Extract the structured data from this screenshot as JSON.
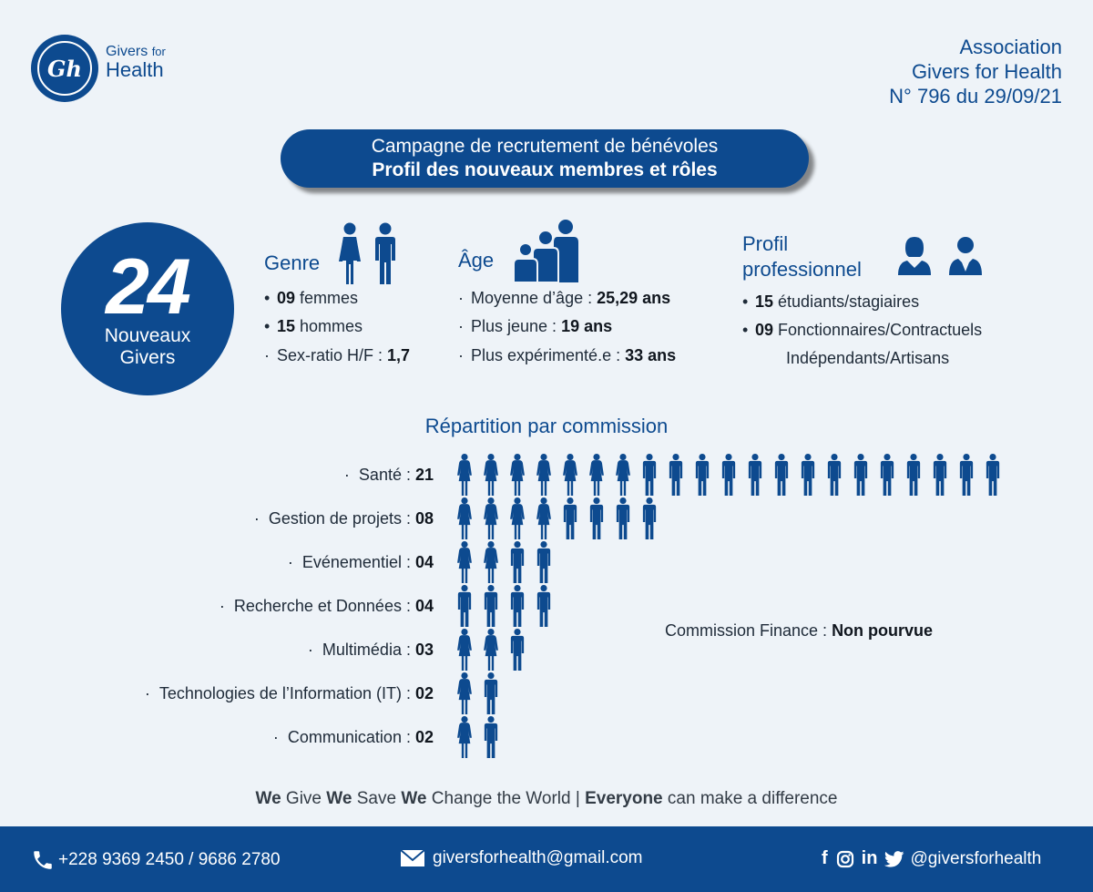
{
  "logo": {
    "line1": "Givers",
    "line1_small": "for",
    "line2": "Health",
    "monogram": "Gh"
  },
  "association": {
    "line1": "Association",
    "line2": "Givers for Health",
    "line3": "N° 796 du 29/09/21"
  },
  "title": {
    "line1": "Campagne de recrutement de bénévoles",
    "line2": "Profil des nouveaux membres et rôles"
  },
  "total": {
    "number": "24",
    "label1": "Nouveaux",
    "label2": "Givers"
  },
  "genre": {
    "title": "Genre",
    "items": [
      {
        "value": "09",
        "text": " femmes"
      },
      {
        "value": "15",
        "text": " hommes"
      },
      {
        "prefix": "Sex-ratio H/F : ",
        "value": "1,7"
      }
    ]
  },
  "age": {
    "title": "Âge",
    "items": [
      {
        "prefix": "Moyenne d’âge : ",
        "value": "25,29 ans"
      },
      {
        "prefix": "Plus jeune : ",
        "value": "19 ans"
      },
      {
        "prefix": "Plus expérimenté.e : ",
        "value": "33 ans"
      }
    ]
  },
  "profil": {
    "title1": "Profil",
    "title2": "professionnel",
    "items": [
      {
        "value": "15",
        "text": " étudiants/stagiaires"
      },
      {
        "value": "09",
        "text": " Fonctionnaires/Contractuels",
        "text2": "Indépendants/Artisans"
      }
    ]
  },
  "repartition": {
    "title": "Répartition par commission",
    "commissions": [
      {
        "label": "Santé : ",
        "value": "21",
        "female": 7,
        "male": 14
      },
      {
        "label": "Gestion de projets : ",
        "value": "08",
        "female": 4,
        "male": 4
      },
      {
        "label": "Evénementiel : ",
        "value": "04",
        "female": 2,
        "male": 2
      },
      {
        "label": "Recherche et Données : ",
        "value": "04",
        "female": 0,
        "male": 4
      },
      {
        "label": "Multimédia : ",
        "value": "03",
        "female": 2,
        "male": 1
      },
      {
        "label": "Technologies de l’Information (IT) : ",
        "value": "02",
        "female": 1,
        "male": 1
      },
      {
        "label": "Communication : ",
        "value": "02",
        "female": 1,
        "male": 1
      }
    ],
    "finance": {
      "label": "Commission Finance : ",
      "value": "Non pourvue"
    }
  },
  "slogan": {
    "w1": "We",
    "t1": " Give ",
    "w2": "We",
    "t2": " Save ",
    "w3": "We",
    "t3": " Change the World | ",
    "w4": "Everyone",
    "t4": " can make a difference"
  },
  "footer": {
    "phone": "+228 9369 2450 / 9686 2780",
    "email": "giversforhealth@gmail.com",
    "social": "@giversforhealth",
    "icons": [
      "phone-icon",
      "mail-icon",
      "facebook-icon",
      "instagram-icon",
      "linkedin-icon",
      "twitter-icon"
    ],
    "facebook_glyph": "f",
    "linkedin_glyph": "in"
  },
  "colors": {
    "primary": "#0d4a8f",
    "background": "#eef3f8"
  }
}
